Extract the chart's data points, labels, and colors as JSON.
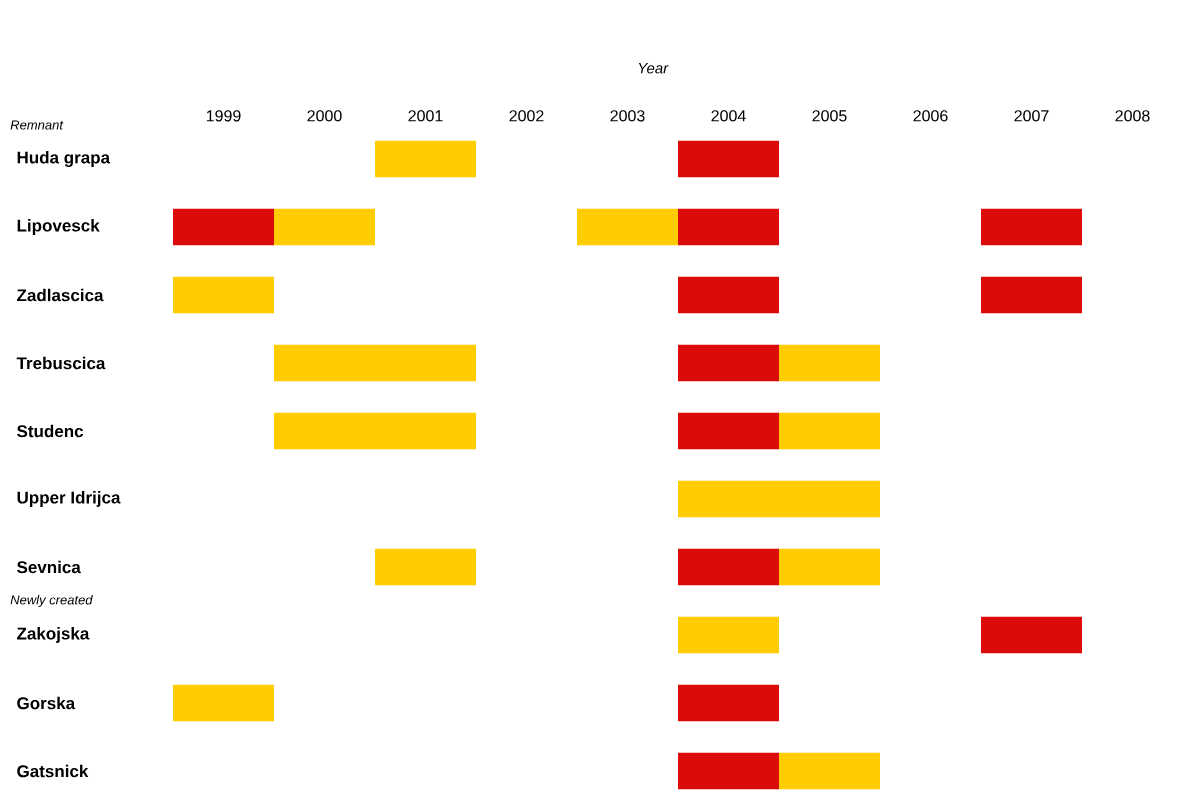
{
  "chart_data": {
    "type": "bar",
    "orientation": "horizontal",
    "xlabel": "Year",
    "categories": [
      "Huda grapa",
      "Lipovesck",
      "Zadlascica",
      "Trebuscica",
      "Studenc",
      "Upper Idrijca",
      "Sevnica",
      "Zakojska",
      "Gorska",
      "Gatsnick"
    ],
    "xlim": [
      1998.5,
      2008
    ],
    "xticks": [
      1999,
      2000,
      2001,
      2002,
      2003,
      2004,
      2005,
      2006,
      2007,
      2008
    ],
    "annotations": [
      "Remnant",
      "Newly created"
    ],
    "series": [
      {
        "color": "#dd0a0a",
        "base": [
          null,
          1998.5,
          null,
          null,
          null,
          null,
          null,
          null,
          null,
          null
        ],
        "values": [
          null,
          1,
          null,
          null,
          null,
          null,
          null,
          null,
          null,
          null
        ]
      },
      {
        "color": "#dd0a0a",
        "base": [
          2003.5,
          2003.5,
          2003.5,
          2003.5,
          2003.5,
          null,
          2003.5,
          null,
          2003.5,
          2003.5
        ],
        "values": [
          1,
          1,
          1,
          1,
          1,
          null,
          1,
          null,
          1,
          1
        ]
      },
      {
        "color": "#dd0a0a",
        "base": [
          null,
          2006.5,
          2006.5,
          null,
          null,
          null,
          null,
          2006.5,
          null,
          null
        ],
        "values": [
          null,
          1,
          1,
          null,
          null,
          null,
          null,
          1,
          null,
          null
        ]
      },
      {
        "color": "#ffcc00",
        "base": [
          2000.5,
          1999.5,
          1998.5,
          1999.5,
          1999.5,
          null,
          2000.5,
          null,
          1998.5,
          null
        ],
        "values": [
          1,
          1,
          1,
          2,
          2,
          null,
          1,
          null,
          1,
          null
        ]
      },
      {
        "color": "#ffcc00",
        "base": [
          null,
          2002.5,
          null,
          2004.5,
          2004.5,
          2003.5,
          2004.5,
          2003.5,
          null,
          2004.5
        ],
        "values": [
          null,
          1,
          null,
          1,
          1,
          2,
          1,
          1,
          null,
          1
        ]
      }
    ]
  }
}
